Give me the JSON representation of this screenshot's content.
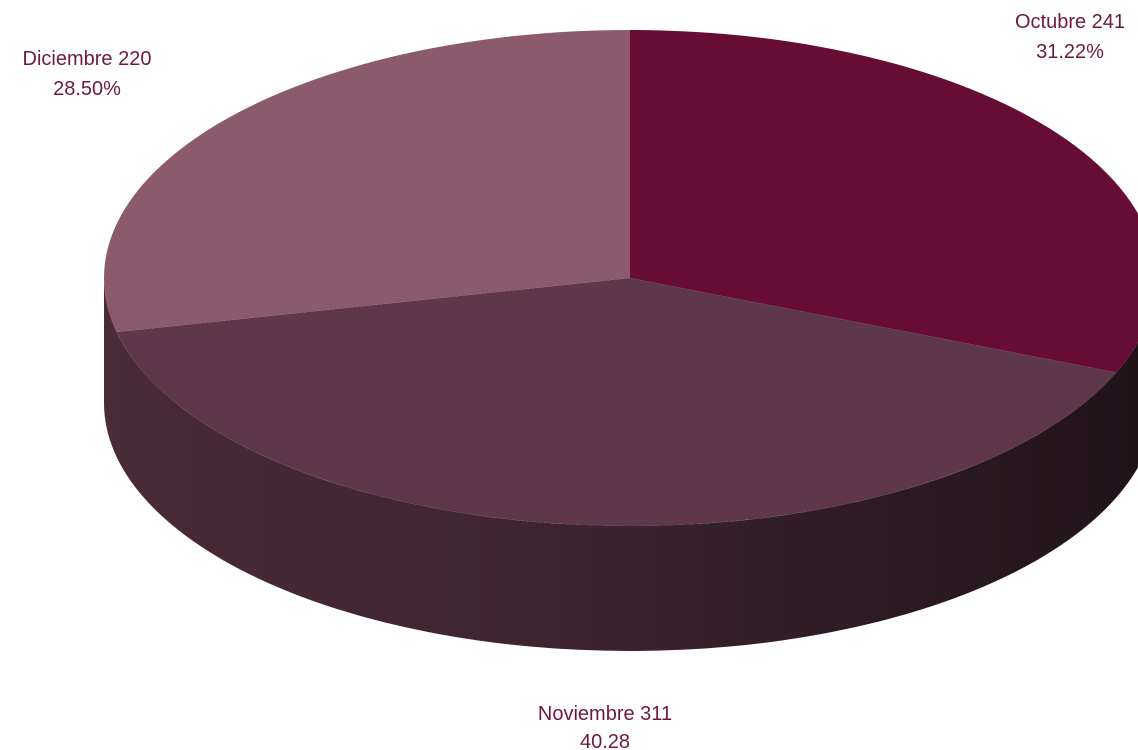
{
  "chart_data": {
    "type": "pie",
    "style": "3d",
    "title": "",
    "slices": [
      {
        "category": "Octubre",
        "value": 241,
        "value_label": "241",
        "percent_label": "31.22%",
        "color": "#660c35"
      },
      {
        "category": "Noviembre",
        "value": 311,
        "value_label": "311",
        "percent_label": "40.28",
        "color": "#5e374a"
      },
      {
        "category": "Diciembre",
        "value": 220,
        "value_label": "220",
        "percent_label": "28.50%",
        "color": "#8c5a6d"
      }
    ],
    "label_color": "#6e1a40",
    "legend": "none"
  }
}
